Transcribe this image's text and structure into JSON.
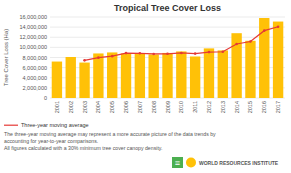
{
  "chart_data": {
    "type": "bar",
    "title": "Tropical Tree Cover Loss",
    "y_label": "Tree Cover Loss (Ha)",
    "categories": [
      "2001",
      "2002",
      "2003",
      "2004",
      "2005",
      "2006",
      "2007",
      "2008",
      "2009",
      "2010",
      "2011",
      "2012",
      "2013",
      "2014",
      "2015",
      "2016",
      "2017"
    ],
    "series": [
      {
        "type": "bar",
        "color": "#FFC107",
        "values": [
          7200000,
          8100000,
          7000000,
          8800000,
          9000000,
          8800000,
          8700000,
          8600000,
          8900000,
          9200000,
          8200000,
          9800000,
          9400000,
          12800000,
          11300000,
          15800000,
          15100000
        ]
      },
      {
        "type": "line",
        "name": "Three-year moving average",
        "color": "#E53935",
        "marker": "circle",
        "values": [
          null,
          null,
          7433333,
          7966667,
          8266667,
          8866667,
          8833333,
          8700000,
          8733333,
          8900000,
          8766667,
          9066667,
          9133333,
          10666667,
          11166667,
          13300000,
          14066667
        ]
      }
    ],
    "ylim": [
      0,
      16000000
    ],
    "yticks": [
      0,
      {
        "value": 2000000,
        "label": "2,000,000"
      },
      {
        "value": 4000000,
        "label": "4,000,000"
      },
      {
        "value": 6000000,
        "label": "6,000,000"
      },
      {
        "value": 8000000,
        "label": "8,000,000"
      },
      {
        "value": 10000000,
        "label": "10,000,000"
      },
      {
        "value": 12000000,
        "label": "12,000,000"
      },
      {
        "value": 14000000,
        "label": "14,000,000"
      },
      {
        "value": 16000000,
        "label": "16,000,000"
      }
    ],
    "grid": true,
    "legend": "bottom",
    "annotations": [
      "The three-year moving average may represent a more accurate picture of the data trends by",
      "accounting for year-to-year comparisons.",
      "All figures calculated with a 30% minimum tree cover canopy density.",
      "≡",
      "WORLD RESOURCES INSTITUTE"
    ]
  }
}
